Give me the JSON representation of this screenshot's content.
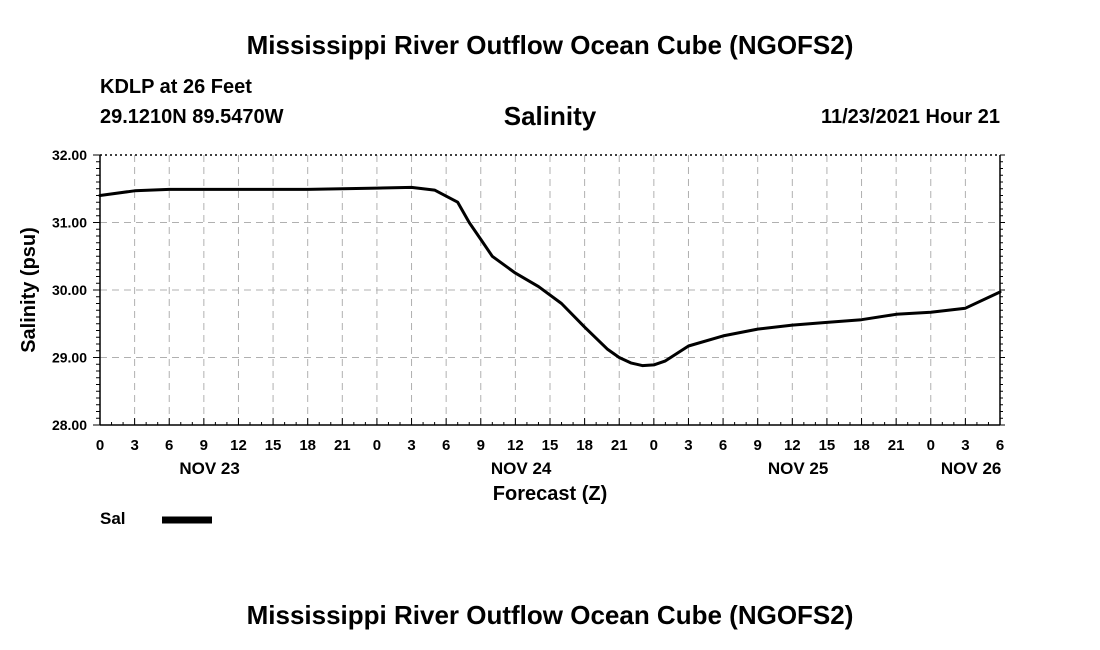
{
  "page": {
    "title": "Mississippi River Outflow Ocean Cube (NGOFS2)",
    "footer_title": "Mississippi River Outflow Ocean Cube (NGOFS2)",
    "station": "KDLP at 26 Feet",
    "coords": "29.1210N  89.5470W",
    "variable": "Salinity",
    "timestamp": "11/23/2021 Hour 21"
  },
  "chart_data": {
    "type": "line",
    "title": "Salinity",
    "xlabel": "Forecast (Z)",
    "ylabel": "Salinity (psu)",
    "ylim": [
      28,
      32
    ],
    "xlim": [
      0,
      78
    ],
    "y_ticks": [
      28,
      29,
      30,
      31,
      32
    ],
    "y_tick_labels": [
      "28.00",
      "29.00",
      "30.00",
      "31.00",
      "32.00"
    ],
    "x_ticks": [
      0,
      3,
      6,
      9,
      12,
      15,
      18,
      21,
      24,
      27,
      30,
      33,
      36,
      39,
      42,
      45,
      48,
      51,
      54,
      57,
      60,
      63,
      66,
      69,
      72,
      75,
      78
    ],
    "x_tick_labels": [
      "0",
      "3",
      "6",
      "9",
      "12",
      "15",
      "18",
      "21",
      "0",
      "3",
      "6",
      "9",
      "12",
      "15",
      "18",
      "21",
      "0",
      "3",
      "6",
      "9",
      "12",
      "15",
      "18",
      "21",
      "0",
      "3",
      "6"
    ],
    "day_labels": [
      {
        "label": "NOV 23",
        "at": 9.5
      },
      {
        "label": "NOV 24",
        "at": 36.5
      },
      {
        "label": "NOV 25",
        "at": 60.5
      },
      {
        "label": "NOV 26",
        "at": 75.5
      }
    ],
    "grid": true,
    "legend": "bottom-left",
    "color": "#000000",
    "series": [
      {
        "name": "Sal",
        "x": [
          0,
          3,
          6,
          9,
          12,
          15,
          18,
          21,
          24,
          27,
          29,
          31,
          32,
          33,
          34,
          36,
          38,
          40,
          42,
          44,
          45,
          46,
          47,
          48,
          49,
          51,
          54,
          57,
          60,
          63,
          66,
          69,
          72,
          75,
          78
        ],
        "y": [
          31.4,
          31.47,
          31.49,
          31.49,
          31.49,
          31.49,
          31.49,
          31.5,
          31.51,
          31.52,
          31.48,
          31.3,
          31.0,
          30.75,
          30.5,
          30.25,
          30.05,
          29.8,
          29.45,
          29.12,
          29.0,
          28.92,
          28.88,
          28.89,
          28.95,
          29.17,
          29.32,
          29.42,
          29.48,
          29.52,
          29.56,
          29.64,
          29.67,
          29.73,
          29.97
        ]
      }
    ]
  }
}
